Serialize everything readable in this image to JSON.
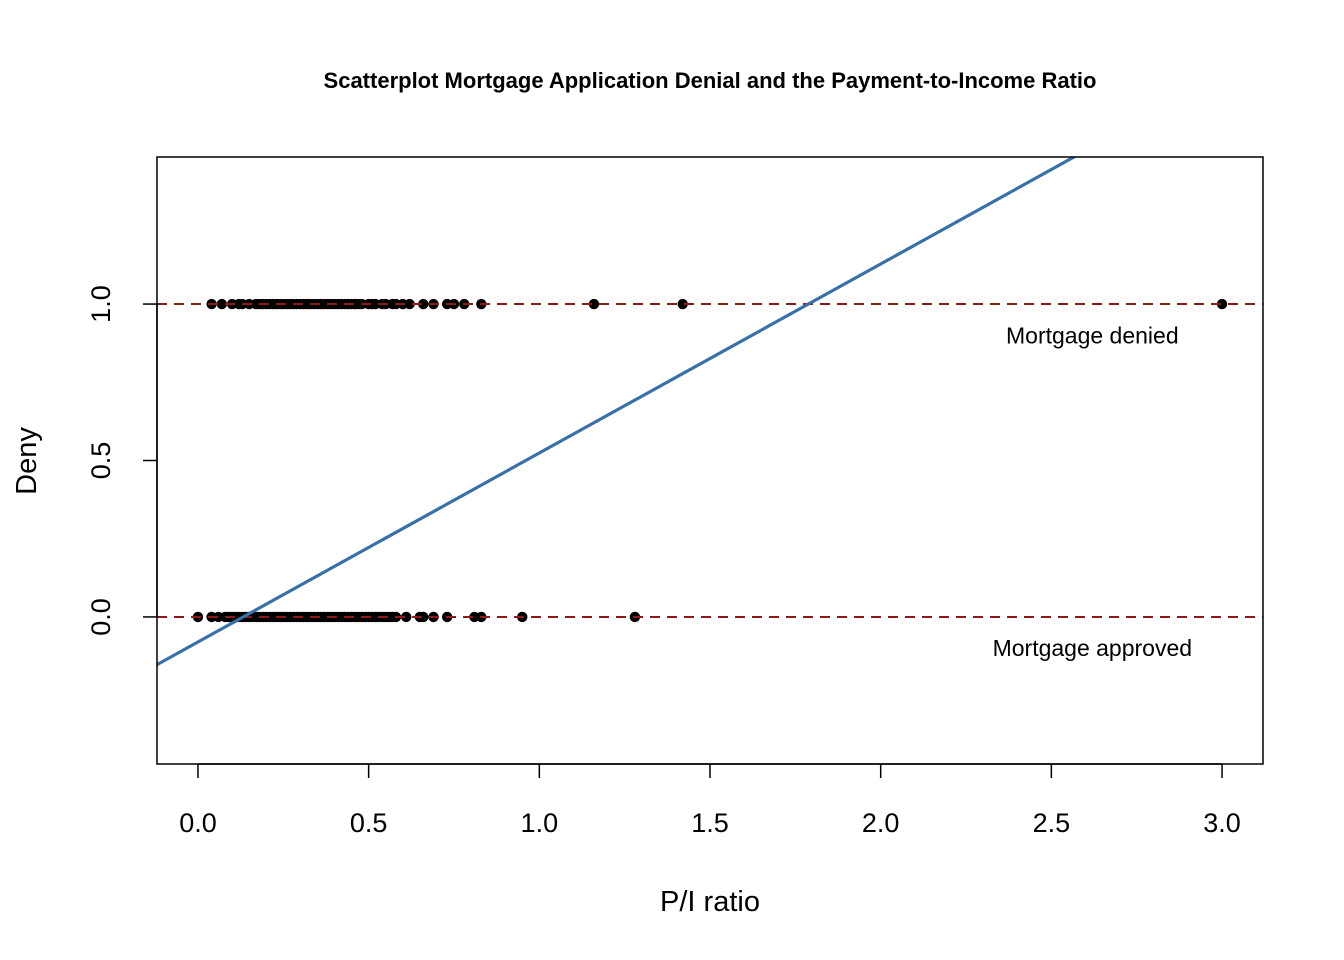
{
  "chart_data": {
    "type": "scatter",
    "title": "Scatterplot Mortgage Application Denial and the Payment-to-Income Ratio",
    "xlabel": "P/I ratio",
    "ylabel": "Deny",
    "xlim": [
      -0.12,
      3.12
    ],
    "ylim": [
      -0.47,
      1.47
    ],
    "x_ticks": [
      {
        "value": 0.0,
        "label": "0.0"
      },
      {
        "value": 0.5,
        "label": "0.5"
      },
      {
        "value": 1.0,
        "label": "1.0"
      },
      {
        "value": 1.5,
        "label": "1.5"
      },
      {
        "value": 2.0,
        "label": "2.0"
      },
      {
        "value": 2.5,
        "label": "2.5"
      },
      {
        "value": 3.0,
        "label": "3.0"
      }
    ],
    "y_ticks": [
      {
        "value": 0.0,
        "label": "0.0"
      },
      {
        "value": 0.5,
        "label": "0.5"
      },
      {
        "value": 1.0,
        "label": "1.0"
      }
    ],
    "grid": false,
    "reference_lines": [
      {
        "y": 0,
        "style": "dashed",
        "color": "#8b1a1a"
      },
      {
        "y": 1,
        "style": "dashed",
        "color": "#8b1a1a"
      }
    ],
    "regression_line": {
      "intercept": -0.08,
      "slope": 0.604,
      "color": "#3a70a8"
    },
    "annotations": [
      {
        "text": "Mortgage denied",
        "x": 2.62,
        "y": 0.9
      },
      {
        "text": "Mortgage approved",
        "x": 2.62,
        "y": -0.1
      }
    ],
    "point_color": "#000000",
    "series": [
      {
        "y": 1,
        "x": [
          0.04,
          0.07,
          0.1,
          0.12,
          0.13,
          0.15,
          0.17,
          0.18,
          0.19,
          0.2,
          0.21,
          0.22,
          0.23,
          0.24,
          0.25,
          0.26,
          0.27,
          0.28,
          0.29,
          0.3,
          0.31,
          0.32,
          0.33,
          0.34,
          0.35,
          0.36,
          0.37,
          0.38,
          0.39,
          0.4,
          0.41,
          0.42,
          0.43,
          0.44,
          0.45,
          0.46,
          0.47,
          0.48,
          0.5,
          0.51,
          0.52,
          0.54,
          0.55,
          0.57,
          0.58,
          0.6,
          0.62,
          0.66,
          0.69,
          0.73,
          0.75,
          0.78,
          0.83,
          1.16,
          1.42,
          3.0
        ]
      },
      {
        "y": 0,
        "x": [
          0.0,
          0.04,
          0.06,
          0.08,
          0.09,
          0.1,
          0.11,
          0.12,
          0.13,
          0.14,
          0.15,
          0.16,
          0.17,
          0.18,
          0.19,
          0.2,
          0.21,
          0.22,
          0.23,
          0.24,
          0.25,
          0.26,
          0.27,
          0.28,
          0.29,
          0.3,
          0.31,
          0.32,
          0.33,
          0.34,
          0.35,
          0.36,
          0.37,
          0.38,
          0.39,
          0.4,
          0.41,
          0.42,
          0.43,
          0.44,
          0.45,
          0.46,
          0.47,
          0.48,
          0.49,
          0.5,
          0.51,
          0.52,
          0.53,
          0.54,
          0.55,
          0.56,
          0.57,
          0.58,
          0.61,
          0.65,
          0.66,
          0.69,
          0.73,
          0.81,
          0.83,
          0.95,
          1.28
        ]
      }
    ]
  }
}
